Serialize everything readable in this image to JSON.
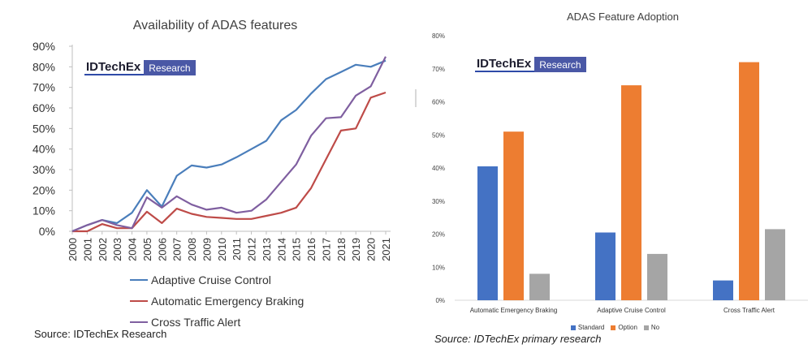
{
  "chart_data": [
    {
      "type": "line",
      "title": "Availability of ADAS features",
      "xlabel": "",
      "ylabel": "",
      "x": [
        "2000",
        "2001",
        "2002",
        "2003",
        "2004",
        "2005",
        "2006",
        "2007",
        "2008",
        "2009",
        "2010",
        "2011",
        "2012",
        "2013",
        "2014",
        "2015",
        "2016",
        "2017",
        "2018",
        "2019",
        "2020",
        "2021"
      ],
      "ylim": [
        0,
        90
      ],
      "yticks": [
        "0%",
        "10%",
        "20%",
        "30%",
        "40%",
        "50%",
        "60%",
        "70%",
        "80%",
        "90%"
      ],
      "grid": false,
      "legend_position": "bottom",
      "series": [
        {
          "name": "Adaptive Cruise Control",
          "color": "#4a7ebb",
          "values": [
            0,
            3,
            5.5,
            4,
            9,
            20,
            12,
            27,
            32,
            31,
            32.5,
            36,
            40,
            44,
            54,
            59,
            67,
            74,
            77.5,
            81,
            80,
            83
          ]
        },
        {
          "name": "Automatic Emergency Braking",
          "color": "#be4b48",
          "values": [
            0,
            0,
            3.5,
            1.5,
            1.5,
            9.5,
            4,
            11,
            8.5,
            7,
            6.5,
            6,
            6,
            7.5,
            9,
            11.5,
            21,
            35,
            49,
            50,
            65,
            67.5
          ]
        },
        {
          "name": "Cross Traffic Alert",
          "color": "#7f5fa0",
          "values": [
            0,
            3,
            5.5,
            3,
            1.5,
            16.5,
            11.5,
            17,
            13,
            10.5,
            11.5,
            9,
            10,
            15.5,
            24,
            32.5,
            46.5,
            55,
            55.5,
            66,
            70.5,
            85
          ]
        }
      ],
      "source": "Source: IDTechEx Research",
      "logo": {
        "name": "IDTechEx",
        "badge": "Research"
      }
    },
    {
      "type": "bar",
      "title": "ADAS Feature Adoption",
      "xlabel": "",
      "ylabel": "",
      "categories": [
        "Automatic Emergency Braking",
        "Adaptive Cruise Control",
        "Cross Traffic Alert"
      ],
      "ylim": [
        0,
        80
      ],
      "yticks": [
        "0%",
        "10%",
        "20%",
        "30%",
        "40%",
        "50%",
        "60%",
        "70%",
        "80%"
      ],
      "grid": false,
      "legend_position": "bottom",
      "series": [
        {
          "name": "Standard",
          "color": "#4472c4",
          "values": [
            40.5,
            20.5,
            6
          ]
        },
        {
          "name": "Option",
          "color": "#ed7d31",
          "values": [
            51,
            65,
            72
          ]
        },
        {
          "name": "No",
          "color": "#a5a5a5",
          "values": [
            8,
            14,
            21.5
          ]
        }
      ],
      "source": "Source: IDTechEx primary research",
      "logo": {
        "name": "IDTechEx",
        "badge": "Research"
      }
    }
  ]
}
